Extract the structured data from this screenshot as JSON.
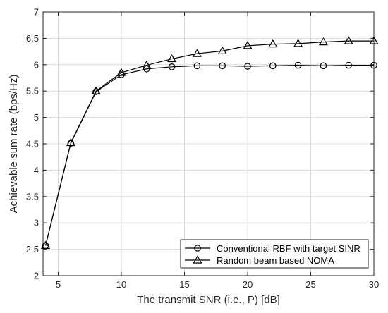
{
  "chart_data": {
    "type": "line",
    "title": "",
    "xlabel": "The transmit SNR (i.e., P) [dB]",
    "ylabel": "Achievable sum rate (bps/Hz)",
    "xlim": [
      3.8,
      30
    ],
    "ylim": [
      2,
      7
    ],
    "xticks": [
      5,
      10,
      15,
      20,
      25,
      30
    ],
    "yticks": [
      2,
      2.5,
      3,
      3.5,
      4,
      4.5,
      5,
      5.5,
      6,
      6.5,
      7
    ],
    "grid": true,
    "legend_position": "bottom-right",
    "series": [
      {
        "name": "Conventional RBF with target SINR",
        "marker": "circle",
        "color": "#000000",
        "x": [
          4,
          6,
          8,
          10,
          12,
          14,
          16,
          18,
          20,
          22,
          24,
          26,
          28,
          30
        ],
        "y": [
          2.57,
          4.51,
          5.49,
          5.81,
          5.92,
          5.96,
          5.98,
          5.98,
          5.97,
          5.98,
          5.99,
          5.98,
          5.99,
          5.99
        ]
      },
      {
        "name": "Random beam based NOMA",
        "marker": "triangle",
        "color": "#000000",
        "x": [
          4,
          6,
          8,
          10,
          12,
          14,
          16,
          18,
          20,
          22,
          24,
          26,
          28,
          30
        ],
        "y": [
          2.57,
          4.52,
          5.5,
          5.85,
          5.99,
          6.11,
          6.21,
          6.26,
          6.36,
          6.39,
          6.4,
          6.43,
          6.45,
          6.45
        ]
      }
    ]
  }
}
